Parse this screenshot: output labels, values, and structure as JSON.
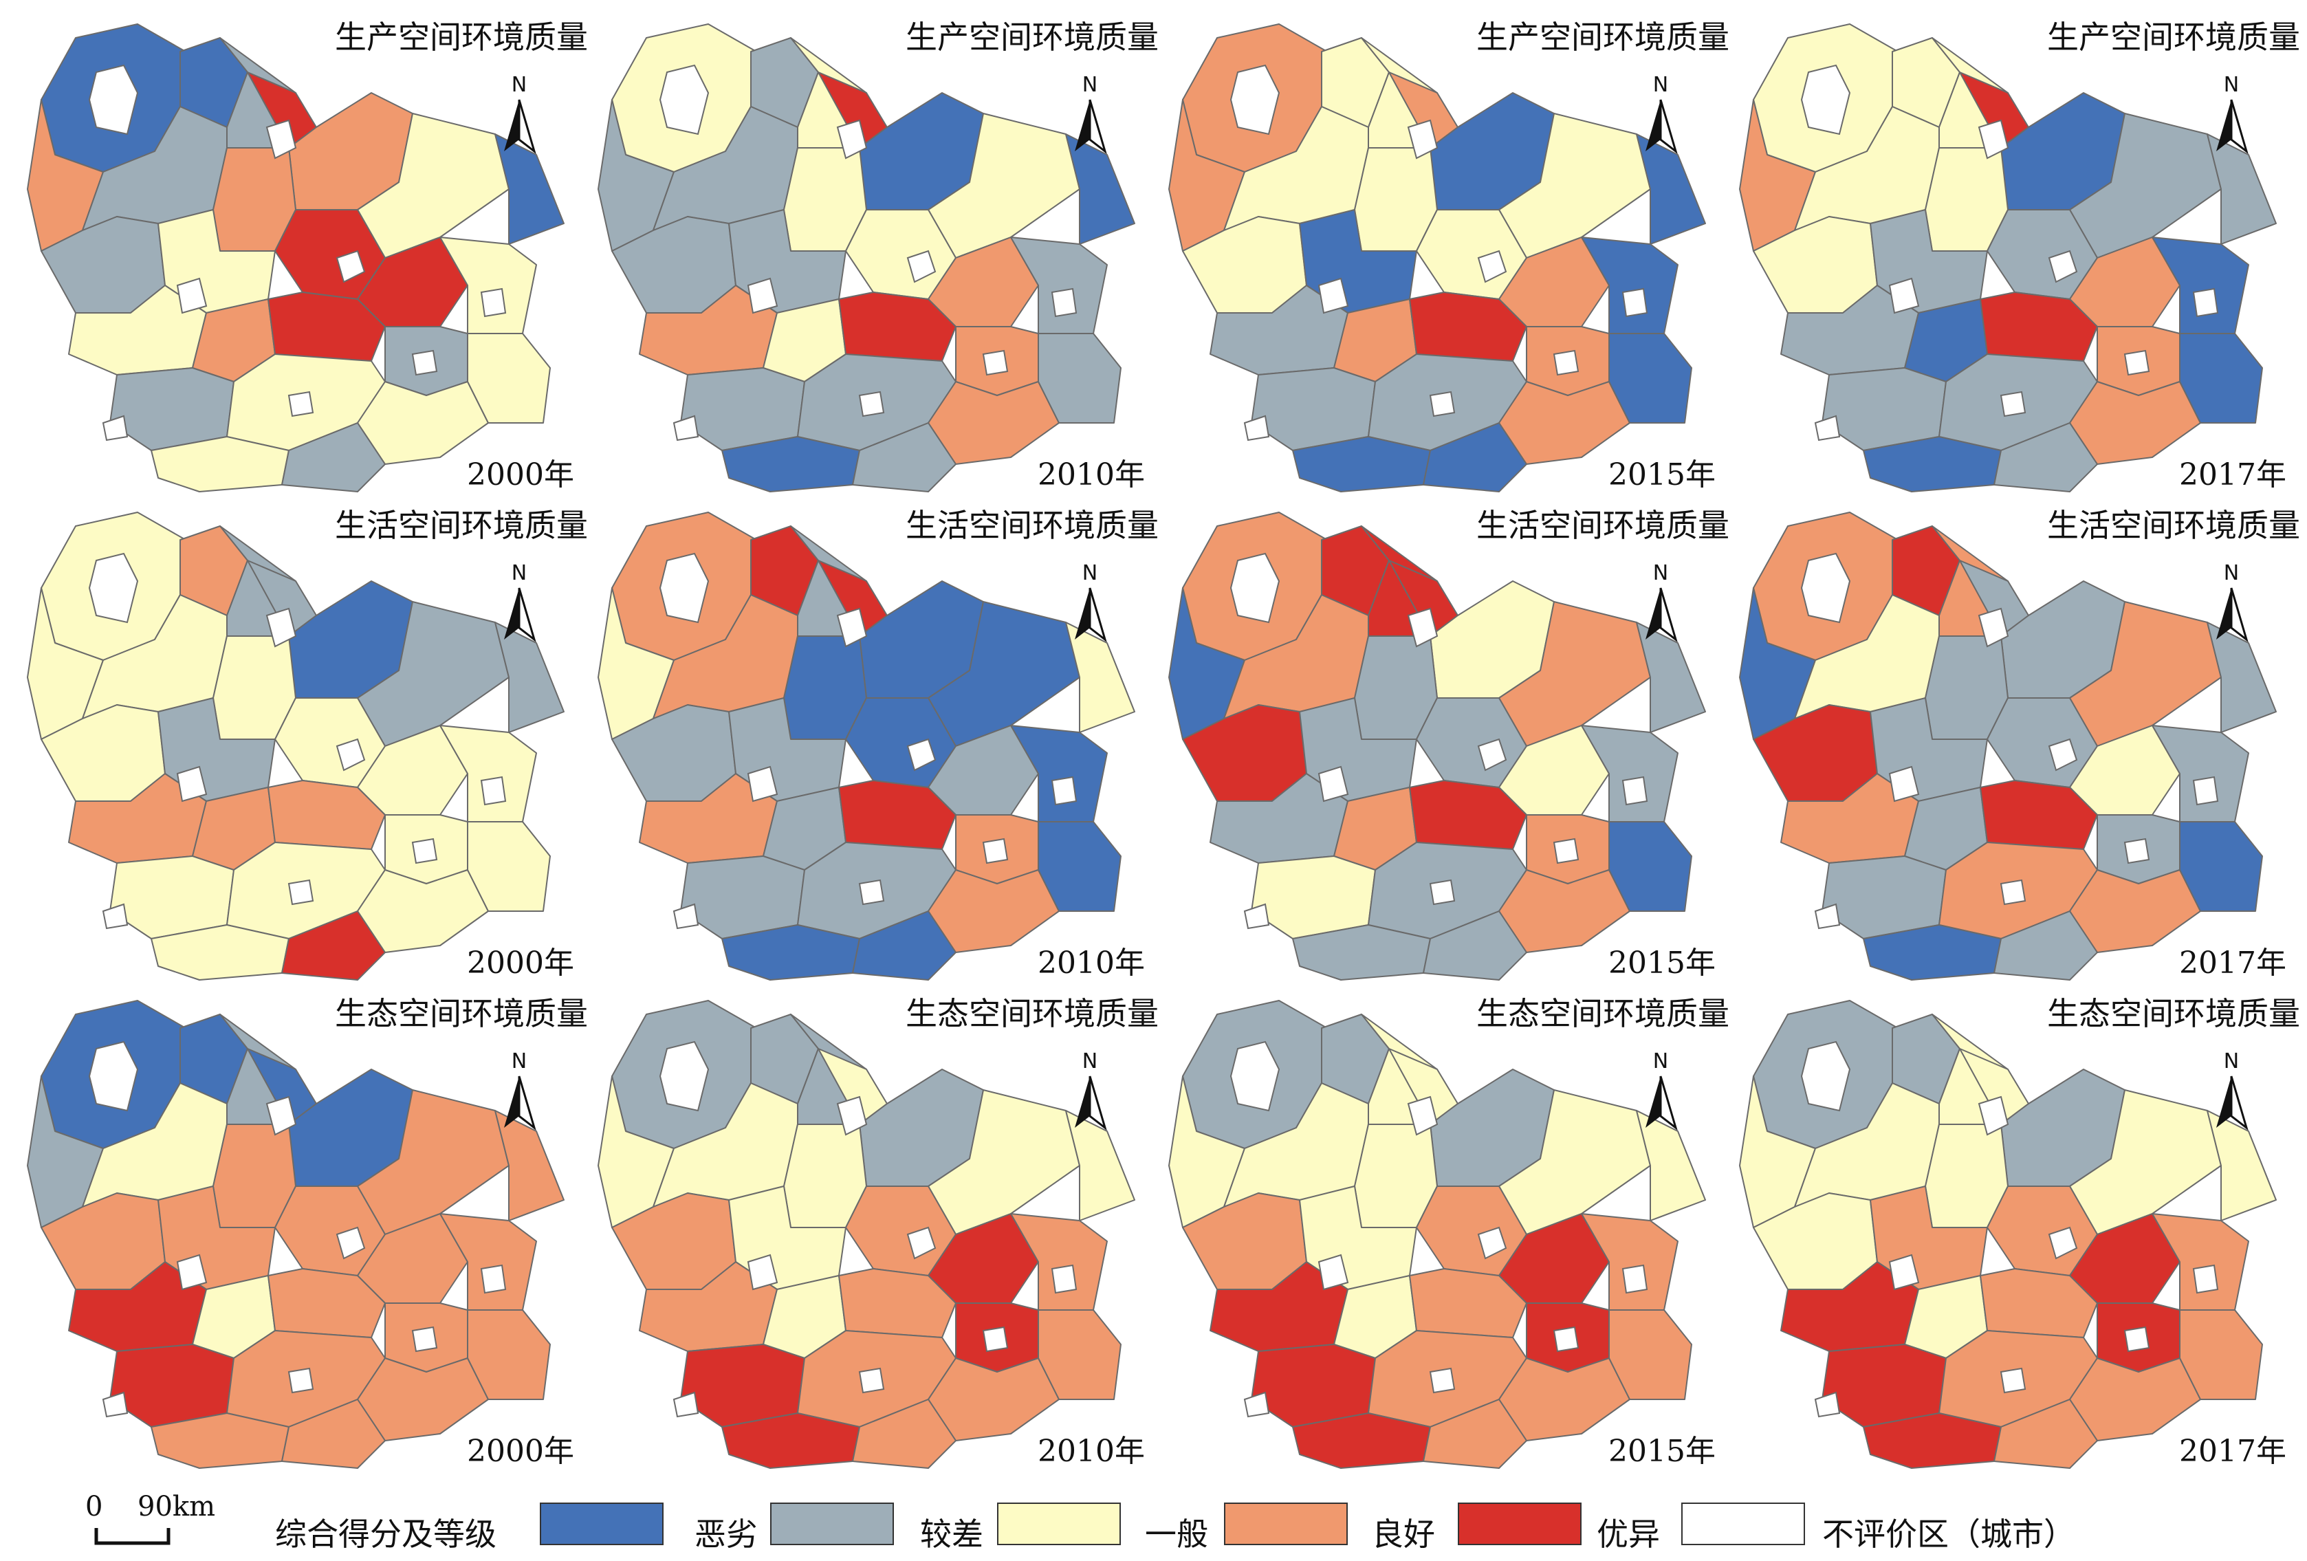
{
  "colors": {
    "恶劣": "#4472b7",
    "较差": "#9eaeb8",
    "一般": "#fdfbc5",
    "良好": "#f0996e",
    "优异": "#d8302b",
    "不评价区": "#ffffff",
    "outline": "#6a6a6a"
  },
  "north_label": "N",
  "rows": [
    {
      "theme": "生产空间环境质量",
      "panels": [
        {
          "year": "2000年",
          "regions": [
            "恶劣",
            "恶劣",
            "较差",
            "良好",
            "优异",
            "良好",
            "较差",
            "良好",
            "一般",
            "恶劣",
            "较差",
            "一般",
            "优异",
            "优异",
            "一般",
            "一般",
            "良好",
            "优异",
            "较差",
            "较差",
            "一般",
            "一般",
            "一般",
            "一般",
            "较差"
          ]
        },
        {
          "year": "2010年",
          "regions": [
            "一般",
            "较差",
            "一般",
            "较差",
            "优异",
            "恶劣",
            "较差",
            "一般",
            "一般",
            "恶劣",
            "较差",
            "较差",
            "一般",
            "良好",
            "较差",
            "良好",
            "一般",
            "优异",
            "良好",
            "较差",
            "较差",
            "良好",
            "较差",
            "恶劣",
            "较差"
          ]
        },
        {
          "year": "2015年",
          "regions": [
            "良好",
            "一般",
            "一般",
            "良好",
            "良好",
            "恶劣",
            "一般",
            "一般",
            "一般",
            "恶劣",
            "一般",
            "恶劣",
            "一般",
            "良好",
            "恶劣",
            "较差",
            "良好",
            "优异",
            "良好",
            "较差",
            "较差",
            "良好",
            "恶劣",
            "恶劣",
            "恶劣"
          ]
        },
        {
          "year": "2017年",
          "regions": [
            "一般",
            "一般",
            "一般",
            "良好",
            "优异",
            "恶劣",
            "一般",
            "一般",
            "较差",
            "较差",
            "一般",
            "较差",
            "较差",
            "良好",
            "恶劣",
            "较差",
            "恶劣",
            "优异",
            "良好",
            "较差",
            "较差",
            "良好",
            "恶劣",
            "恶劣",
            "较差"
          ]
        }
      ]
    },
    {
      "theme": "生活空间环境质量",
      "panels": [
        {
          "year": "2000年",
          "regions": [
            "一般",
            "良好",
            "较差",
            "一般",
            "较差",
            "恶劣",
            "一般",
            "一般",
            "较差",
            "较差",
            "一般",
            "较差",
            "一般",
            "一般",
            "一般",
            "良好",
            "良好",
            "良好",
            "一般",
            "一般",
            "一般",
            "一般",
            "一般",
            "一般",
            "优异"
          ]
        },
        {
          "year": "2010年",
          "regions": [
            "良好",
            "优异",
            "较差",
            "一般",
            "优异",
            "恶劣",
            "良好",
            "恶劣",
            "恶劣",
            "一般",
            "较差",
            "较差",
            "恶劣",
            "较差",
            "恶劣",
            "良好",
            "较差",
            "优异",
            "良好",
            "较差",
            "较差",
            "良好",
            "恶劣",
            "恶劣",
            "恶劣"
          ]
        },
        {
          "year": "2015年",
          "regions": [
            "良好",
            "优异",
            "优异",
            "恶劣",
            "优异",
            "一般",
            "良好",
            "较差",
            "良好",
            "较差",
            "优异",
            "较差",
            "较差",
            "一般",
            "较差",
            "较差",
            "良好",
            "优异",
            "良好",
            "一般",
            "较差",
            "良好",
            "恶劣",
            "较差",
            "较差"
          ]
        },
        {
          "year": "2017年",
          "regions": [
            "良好",
            "优异",
            "良好",
            "恶劣",
            "较差",
            "较差",
            "一般",
            "较差",
            "良好",
            "较差",
            "优异",
            "较差",
            "较差",
            "一般",
            "较差",
            "良好",
            "较差",
            "优异",
            "较差",
            "较差",
            "良好",
            "良好",
            "恶劣",
            "恶劣",
            "较差"
          ]
        }
      ]
    },
    {
      "theme": "生态空间环境质量",
      "panels": [
        {
          "year": "2000年",
          "regions": [
            "恶劣",
            "恶劣",
            "较差",
            "较差",
            "恶劣",
            "恶劣",
            "一般",
            "良好",
            "良好",
            "良好",
            "良好",
            "良好",
            "良好",
            "良好",
            "良好",
            "优异",
            "一般",
            "良好",
            "良好",
            "优异",
            "良好",
            "良好",
            "良好",
            "良好",
            "良好"
          ]
        },
        {
          "year": "2010年",
          "regions": [
            "较差",
            "较差",
            "较差",
            "一般",
            "一般",
            "较差",
            "一般",
            "一般",
            "一般",
            "一般",
            "良好",
            "一般",
            "良好",
            "优异",
            "良好",
            "良好",
            "一般",
            "良好",
            "优异",
            "优异",
            "良好",
            "良好",
            "良好",
            "优异",
            "良好"
          ]
        },
        {
          "year": "2015年",
          "regions": [
            "较差",
            "较差",
            "一般",
            "一般",
            "一般",
            "较差",
            "一般",
            "一般",
            "一般",
            "一般",
            "良好",
            "一般",
            "良好",
            "优异",
            "良好",
            "优异",
            "一般",
            "良好",
            "优异",
            "优异",
            "良好",
            "良好",
            "良好",
            "优异",
            "良好"
          ]
        },
        {
          "year": "2017年",
          "regions": [
            "较差",
            "较差",
            "一般",
            "一般",
            "一般",
            "较差",
            "一般",
            "一般",
            "一般",
            "一般",
            "一般",
            "良好",
            "良好",
            "优异",
            "良好",
            "优异",
            "一般",
            "良好",
            "优异",
            "优异",
            "良好",
            "良好",
            "良好",
            "优异",
            "良好"
          ]
        }
      ]
    }
  ],
  "legend": {
    "scale_zero": "0",
    "scale_label": "90km",
    "title": "综合得分及等级",
    "items": [
      {
        "key": "恶劣",
        "label": "恶劣"
      },
      {
        "key": "较差",
        "label": "较差"
      },
      {
        "key": "一般",
        "label": "一般"
      },
      {
        "key": "良好",
        "label": "良好"
      },
      {
        "key": "优异",
        "label": "优异"
      },
      {
        "key": "不评价区",
        "label": "不评价区（城市）"
      }
    ]
  }
}
